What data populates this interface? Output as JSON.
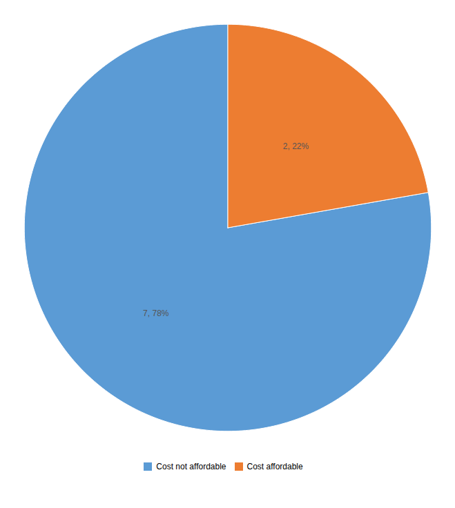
{
  "chart_data": {
    "type": "pie",
    "categories": [
      "Cost not affordable",
      "Cost affordable"
    ],
    "values": [
      7,
      2
    ],
    "value_labels": [
      "7, 78%",
      "2, 22%"
    ],
    "colors": [
      "#5B9BD5",
      "#ED7D31"
    ],
    "data_labels": true,
    "legend": "bottom"
  }
}
